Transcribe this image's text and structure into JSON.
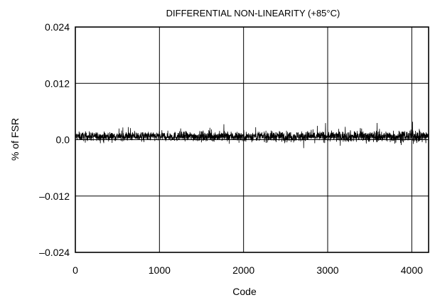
{
  "chart_data": {
    "type": "line",
    "title": "DIFFERENTIAL NON-LINEARITY (+85°C)",
    "xlabel": "Code",
    "ylabel": "% of FSR",
    "xlim": [
      0,
      4200
    ],
    "ylim": [
      -0.024,
      0.024
    ],
    "x_ticks": [
      0,
      1000,
      2000,
      3000,
      4000
    ],
    "x_tick_labels": [
      "0",
      "1000",
      "2000",
      "3000",
      "4000"
    ],
    "y_ticks": [
      0.024,
      0.012,
      0.0,
      -0.012,
      -0.024
    ],
    "y_tick_labels": [
      "0.024",
      "0.012",
      "0.0",
      "–0.012",
      "–0.024"
    ],
    "grid": true,
    "series": [
      {
        "data_description": "noise-like DNL trace per code, centered near +0.0007",
        "x_range": [
          0,
          4200
        ],
        "typical_band": [
          -0.0008,
          0.0022
        ],
        "extreme_band": [
          -0.0022,
          0.0042
        ],
        "mean": 0.0007
      }
    ]
  }
}
